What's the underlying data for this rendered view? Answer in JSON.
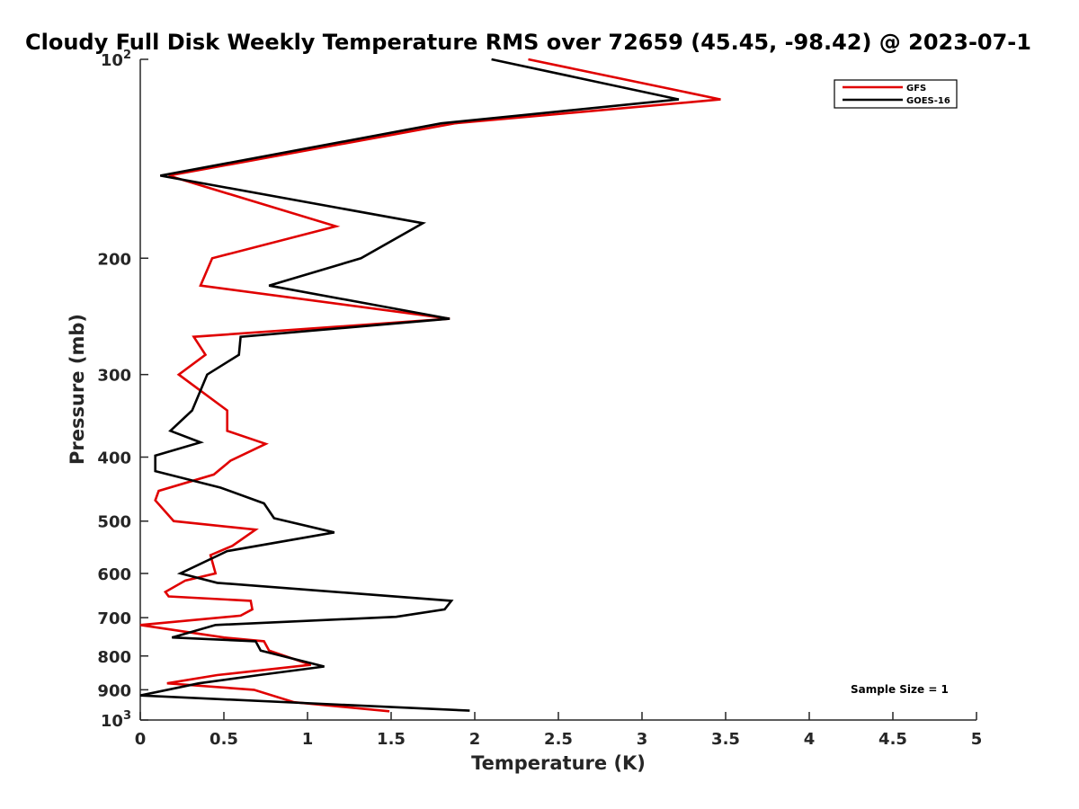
{
  "chart_data": {
    "type": "line",
    "title": "Cloudy Full Disk Weekly Temperature RMS over 72659 (45.45, -98.42) @ 2023-07-1",
    "xlabel": "Temperature (K)",
    "ylabel": "Pressure (mb)",
    "xlim": [
      0,
      5
    ],
    "ylim": [
      100,
      1000
    ],
    "y_scale": "log",
    "y_reversed": true,
    "grid": false,
    "legend_position": "top-right",
    "annotation": "Sample Size = 1",
    "x_ticks": [
      "0",
      "0.5",
      "1",
      "1.5",
      "2",
      "2.5",
      "3",
      "3.5",
      "4",
      "4.5",
      "5"
    ],
    "y_ticks": [
      {
        "value": 100,
        "base": "10",
        "exp": "2"
      },
      {
        "value": 200,
        "label": "200"
      },
      {
        "value": 300,
        "label": "300"
      },
      {
        "value": 400,
        "label": "400"
      },
      {
        "value": 500,
        "label": "500"
      },
      {
        "value": 600,
        "label": "600"
      },
      {
        "value": 700,
        "label": "700"
      },
      {
        "value": 800,
        "label": "800"
      },
      {
        "value": 900,
        "label": "900"
      },
      {
        "value": 1000,
        "base": "10",
        "exp": "3"
      }
    ],
    "series": [
      {
        "name": "GFS",
        "color": "#e00000",
        "points": [
          [
            2.32,
            100
          ],
          [
            3.47,
            115
          ],
          [
            1.88,
            125
          ],
          [
            0.17,
            150
          ],
          [
            1.17,
            179
          ],
          [
            0.43,
            200
          ],
          [
            0.36,
            220
          ],
          [
            1.85,
            247
          ],
          [
            0.32,
            263
          ],
          [
            0.39,
            280
          ],
          [
            0.23,
            300
          ],
          [
            0.52,
            340
          ],
          [
            0.52,
            365
          ],
          [
            0.75,
            382
          ],
          [
            0.54,
            405
          ],
          [
            0.44,
            425
          ],
          [
            0.11,
            450
          ],
          [
            0.09,
            465
          ],
          [
            0.2,
            500
          ],
          [
            0.69,
            515
          ],
          [
            0.55,
            545
          ],
          [
            0.42,
            563
          ],
          [
            0.45,
            600
          ],
          [
            0.27,
            615
          ],
          [
            0.15,
            640
          ],
          [
            0.17,
            650
          ],
          [
            0.66,
            660
          ],
          [
            0.67,
            680
          ],
          [
            0.6,
            695
          ],
          [
            0.0,
            718
          ],
          [
            0.5,
            750
          ],
          [
            0.74,
            760
          ],
          [
            0.77,
            785
          ],
          [
            1.02,
            825
          ],
          [
            0.46,
            855
          ],
          [
            0.16,
            880
          ],
          [
            0.68,
            900
          ],
          [
            0.92,
            940
          ],
          [
            1.49,
            970
          ]
        ]
      },
      {
        "name": "GOES-16",
        "color": "#000000",
        "points": [
          [
            2.1,
            100
          ],
          [
            3.22,
            115
          ],
          [
            1.8,
            125
          ],
          [
            0.12,
            150
          ],
          [
            1.69,
            177
          ],
          [
            1.32,
            200
          ],
          [
            0.77,
            220
          ],
          [
            1.85,
            247
          ],
          [
            0.6,
            263
          ],
          [
            0.59,
            280
          ],
          [
            0.4,
            300
          ],
          [
            0.31,
            340
          ],
          [
            0.18,
            365
          ],
          [
            0.36,
            380
          ],
          [
            0.09,
            398
          ],
          [
            0.09,
            420
          ],
          [
            0.48,
            445
          ],
          [
            0.74,
            470
          ],
          [
            0.8,
            495
          ],
          [
            1.16,
            520
          ],
          [
            0.52,
            555
          ],
          [
            0.24,
            600
          ],
          [
            0.46,
            620
          ],
          [
            1.86,
            660
          ],
          [
            1.82,
            680
          ],
          [
            1.53,
            698
          ],
          [
            0.45,
            718
          ],
          [
            0.19,
            750
          ],
          [
            0.69,
            760
          ],
          [
            0.72,
            785
          ],
          [
            1.1,
            830
          ],
          [
            0.71,
            855
          ],
          [
            0.35,
            880
          ],
          [
            0.0,
            918
          ],
          [
            1.97,
            968
          ]
        ]
      }
    ]
  }
}
